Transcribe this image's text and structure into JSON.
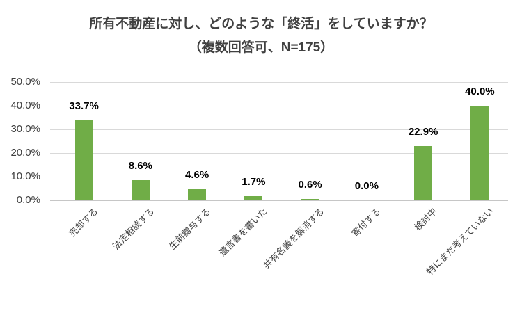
{
  "title": {
    "line1": "所有不動産に対し、どのような「終活」をしていますか？",
    "line2": "（複数回答可、N=175）"
  },
  "chart_data": {
    "type": "bar",
    "title": "所有不動産に対し、どのような「終活」をしていますか？（複数回答可、N=175）",
    "subtitle": "複数回答可、N=175",
    "categories": [
      "売却する",
      "法定相続する",
      "生前贈与する",
      "遺言書を書いた",
      "共有名義を解消する",
      "寄付する",
      "検討中",
      "特にまだ考えていない"
    ],
    "values": [
      33.7,
      8.6,
      4.6,
      1.7,
      0.6,
      0.0,
      22.9,
      40.0
    ],
    "value_labels": [
      "33.7%",
      "8.6%",
      "4.6%",
      "1.7%",
      "0.6%",
      "0.0%",
      "22.9%",
      "40.0%"
    ],
    "xlabel": "",
    "ylabel": "",
    "ylim": [
      0,
      50
    ],
    "yticks": [
      0,
      10,
      20,
      30,
      40,
      50
    ],
    "ytick_labels": [
      "0.0%",
      "10.0%",
      "20.0%",
      "30.0%",
      "40.0%",
      "50.0%"
    ],
    "grid": true,
    "legend": false,
    "bar_color": "#70AD47",
    "gridline_color": "#D9D9D9",
    "axis_line_color": "#C6C6C6",
    "value_label_color": "#000000",
    "tick_label_color": "#404040",
    "title_color": "#404040",
    "background_color": "#FFFFFF"
  }
}
